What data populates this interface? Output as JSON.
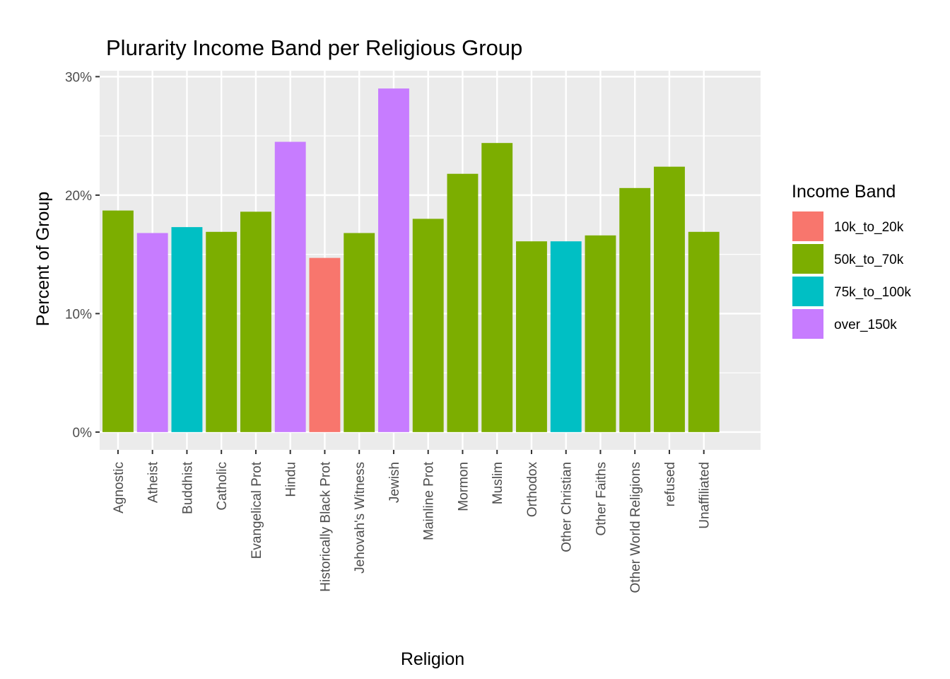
{
  "chart_data": {
    "type": "bar",
    "title": "Plurarity Income Band per Religious Group",
    "xlabel": "Religion",
    "ylabel": "Percent of Group",
    "ylim": [
      -1.5,
      30.5
    ],
    "yticks": [
      0,
      10,
      20,
      30
    ],
    "ytick_labels": [
      "0%",
      "10%",
      "20%",
      "30%"
    ],
    "grid": true,
    "legend": {
      "title": "Income Band",
      "placement": "right",
      "entries": [
        {
          "label": "10k_to_20k",
          "color": "#F8766D"
        },
        {
          "label": "50k_to_70k",
          "color": "#7CAE00"
        },
        {
          "label": "75k_to_100k",
          "color": "#00BFC4"
        },
        {
          "label": "over_150k",
          "color": "#C77CFF"
        }
      ]
    },
    "categories": [
      "Agnostic",
      "Atheist",
      "Buddhist",
      "Catholic",
      "Evangelical Prot",
      "Hindu",
      "Historically Black Prot",
      "Jehovah's Witness",
      "Jewish",
      "Mainline Prot",
      "Mormon",
      "Muslim",
      "Orthodox",
      "Other Christian",
      "Other Faiths",
      "Other World Religions",
      "refused",
      "Unaffiliated"
    ],
    "values": [
      18.7,
      16.8,
      17.3,
      16.9,
      18.6,
      24.5,
      14.7,
      16.8,
      29.0,
      18.0,
      21.8,
      24.4,
      16.1,
      16.1,
      16.6,
      20.6,
      22.4,
      16.9
    ],
    "bands": [
      "50k_to_70k",
      "over_150k",
      "75k_to_100k",
      "50k_to_70k",
      "50k_to_70k",
      "over_150k",
      "10k_to_20k",
      "50k_to_70k",
      "over_150k",
      "50k_to_70k",
      "50k_to_70k",
      "50k_to_70k",
      "50k_to_70k",
      "75k_to_100k",
      "50k_to_70k",
      "50k_to_70k",
      "50k_to_70k",
      "50k_to_70k"
    ]
  }
}
